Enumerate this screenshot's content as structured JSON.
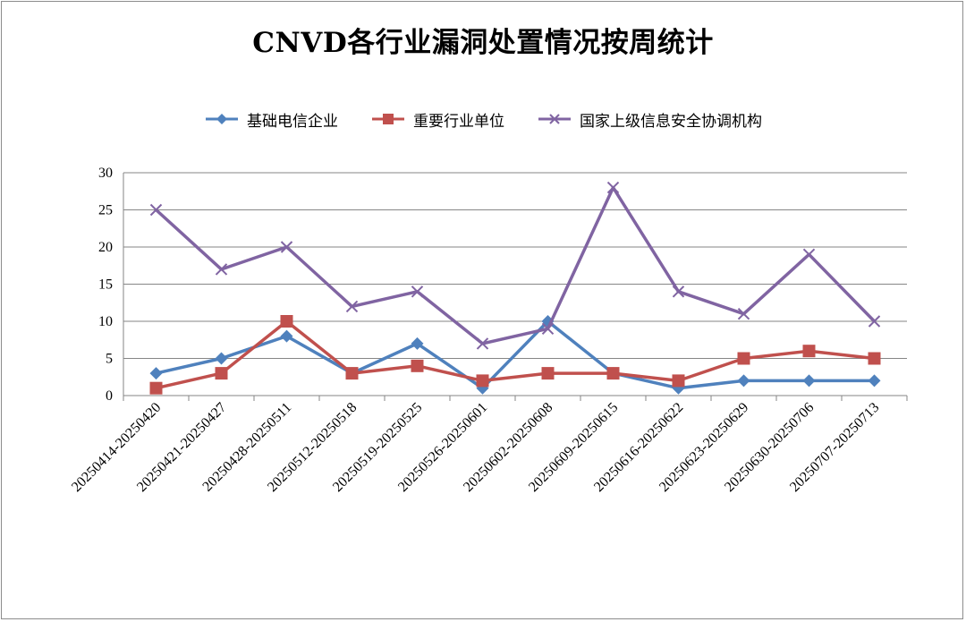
{
  "title": "CNVD各行业漏洞处置情况按周统计",
  "legend": [
    {
      "name": "基础电信企业",
      "color": "#4f81bd",
      "marker": "diamond"
    },
    {
      "name": "重要行业单位",
      "color": "#c0504d",
      "marker": "square"
    },
    {
      "name": "国家上级信息安全协调机构",
      "color": "#8064a2",
      "marker": "x"
    }
  ],
  "chart_data": {
    "type": "line",
    "title": "CNVD各行业漏洞处置情况按周统计",
    "categories": [
      "20250414-20250420",
      "20250421-20250427",
      "20250428-20250511",
      "20250512-20250518",
      "20250519-20250525",
      "20250526-20250601",
      "20250602-20250608",
      "20250609-20250615",
      "20250616-20250622",
      "20250623-20250629",
      "20250630-20250706",
      "20250707-20250713"
    ],
    "series": [
      {
        "name": "基础电信企业",
        "color": "#4f81bd",
        "marker": "diamond",
        "values": [
          3,
          5,
          8,
          3,
          7,
          1,
          10,
          3,
          1,
          2,
          2,
          2
        ]
      },
      {
        "name": "重要行业单位",
        "color": "#c0504d",
        "marker": "square",
        "values": [
          1,
          3,
          10,
          3,
          4,
          2,
          3,
          3,
          2,
          5,
          6,
          5
        ]
      },
      {
        "name": "国家上级信息安全协调机构",
        "color": "#8064a2",
        "marker": "x",
        "values": [
          25,
          17,
          20,
          12,
          14,
          7,
          9,
          28,
          14,
          11,
          19,
          10
        ]
      }
    ],
    "ylim": [
      0,
      30
    ],
    "yticks": [
      0,
      5,
      10,
      15,
      20,
      25,
      30
    ],
    "grid": true,
    "legend_position": "top"
  }
}
